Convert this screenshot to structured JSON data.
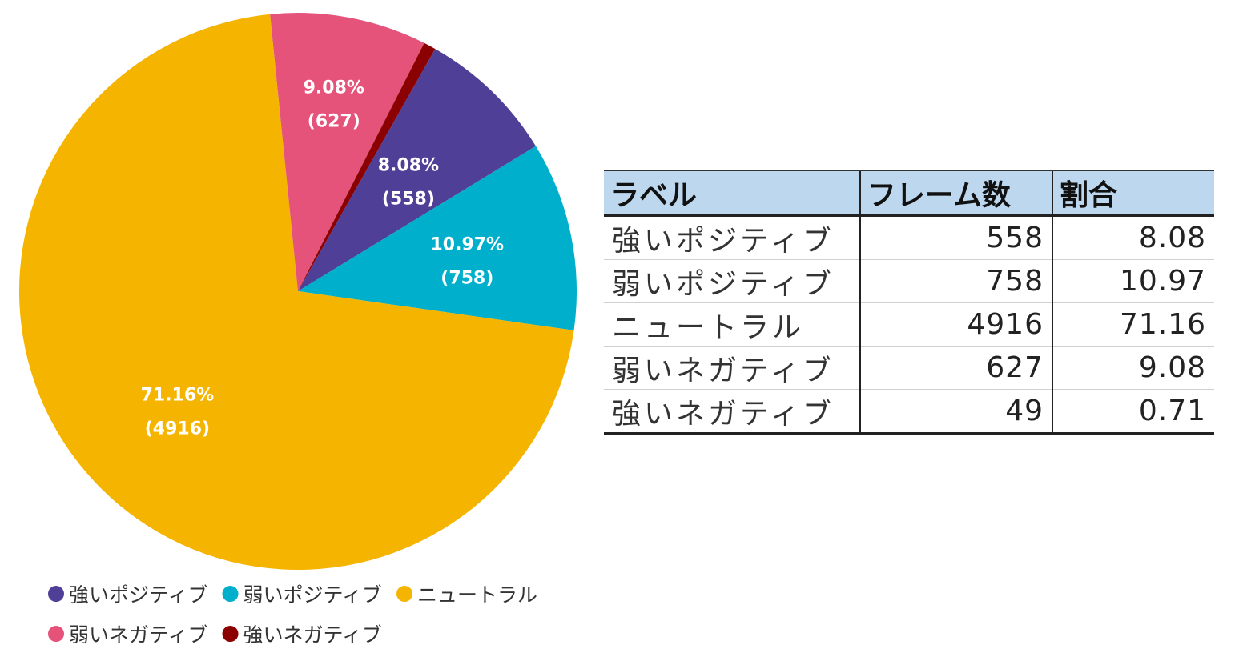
{
  "chart_data": {
    "type": "pie",
    "slices": [
      {
        "label": "強いポジティブ",
        "percent": 8.08,
        "count": 558,
        "percent_text": "8.08%",
        "count_text": "(558)",
        "color": "#4f3f96"
      },
      {
        "label": "弱いポジティブ",
        "percent": 10.97,
        "count": 758,
        "percent_text": "10.97%",
        "count_text": "(758)",
        "color": "#00afcb"
      },
      {
        "label": "ニュートラル",
        "percent": 71.16,
        "count": 4916,
        "percent_text": "71.16%",
        "count_text": "(4916)",
        "color": "#f5b400"
      },
      {
        "label": "弱いネガティブ",
        "percent": 9.08,
        "count": 627,
        "percent_text": "9.08%",
        "count_text": "(627)",
        "color": "#e5527a"
      },
      {
        "label": "強いネガティブ",
        "percent": 0.71,
        "count": 49,
        "percent_text": "",
        "count_text": "",
        "color": "#8b0000"
      }
    ],
    "legend_position": "bottom"
  },
  "table": {
    "headers": [
      "ラベル",
      "フレーム数",
      "割合"
    ],
    "rows": [
      [
        "強いポジティブ",
        "558",
        "8.08"
      ],
      [
        "弱いポジティブ",
        "758",
        "10.97"
      ],
      [
        "ニュートラル",
        "4916",
        "71.16"
      ],
      [
        "弱いネガティブ",
        "627",
        "9.08"
      ],
      [
        "強いネガティブ",
        "49",
        "0.71"
      ]
    ],
    "header_color": "#bdd7ee"
  }
}
